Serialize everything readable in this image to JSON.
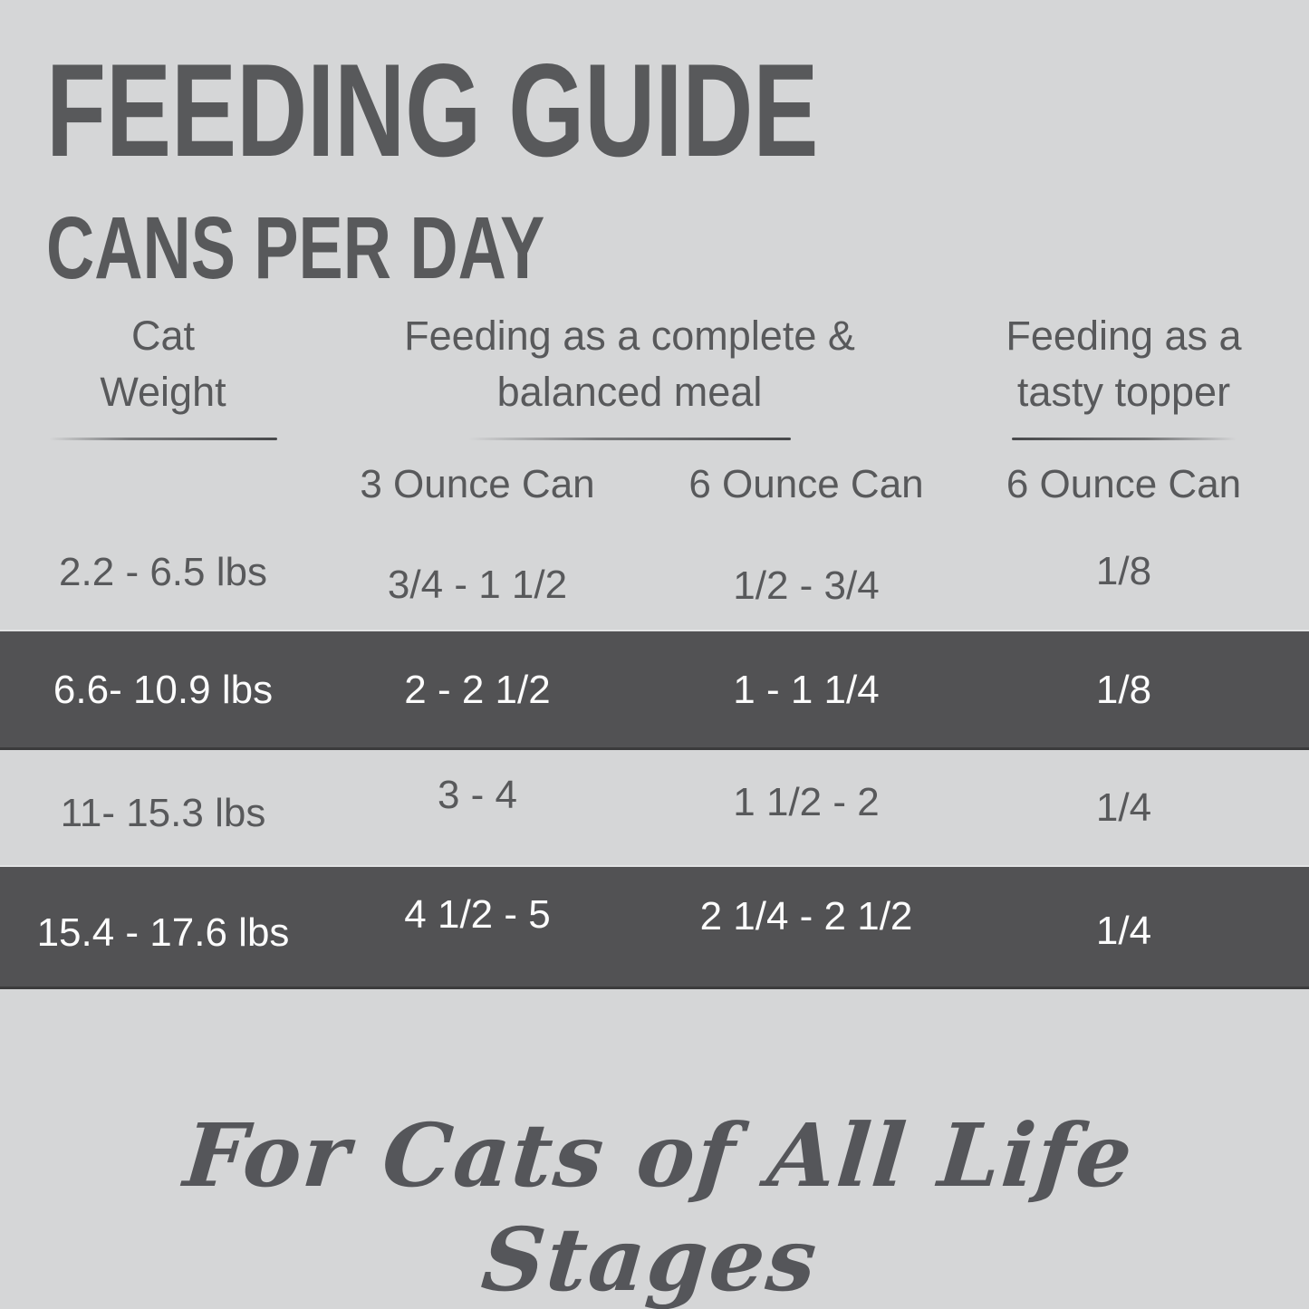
{
  "colors": {
    "background": "#d5d6d7",
    "highlight_band": "#525254",
    "text": "#58595b",
    "band_text": "#fcfcfc"
  },
  "chart_data": {
    "type": "table",
    "title": "FEEDING GUIDE",
    "subtitle": "CANS PER DAY",
    "header_groups": {
      "weight": [
        "Cat",
        "Weight"
      ],
      "meal": [
        "Feeding as a complete &",
        "balanced meal"
      ],
      "topper": [
        "Feeding as a",
        "tasty topper"
      ]
    },
    "subheaders": [
      "3 Ounce Can",
      "6 Ounce Can",
      "6 Ounce Can"
    ],
    "columns": [
      "Cat Weight",
      "Complete & balanced meal — 3 Ounce Can",
      "Complete & balanced meal — 6 Ounce Can",
      "Tasty topper — 6 Ounce Can"
    ],
    "rows": [
      [
        "2.2 - 6.5 lbs",
        "3/4 - 1 1/2",
        "1/2 - 3/4",
        "1/8"
      ],
      [
        "6.6- 10.9 lbs",
        "2 - 2 1/2",
        "1 - 1 1/4",
        "1/8"
      ],
      [
        "11- 15.3 lbs",
        "3 - 4",
        "1 1/2 - 2",
        "1/4"
      ],
      [
        "15.4 - 17.6 lbs",
        "4 1/2 - 5",
        "2 1/4 - 2 1/2",
        "1/4"
      ]
    ],
    "highlighted_row_indices": [
      1,
      3
    ],
    "footnote": "For Cats of All Life Stages",
    "legend_position": "none",
    "grid": false
  }
}
